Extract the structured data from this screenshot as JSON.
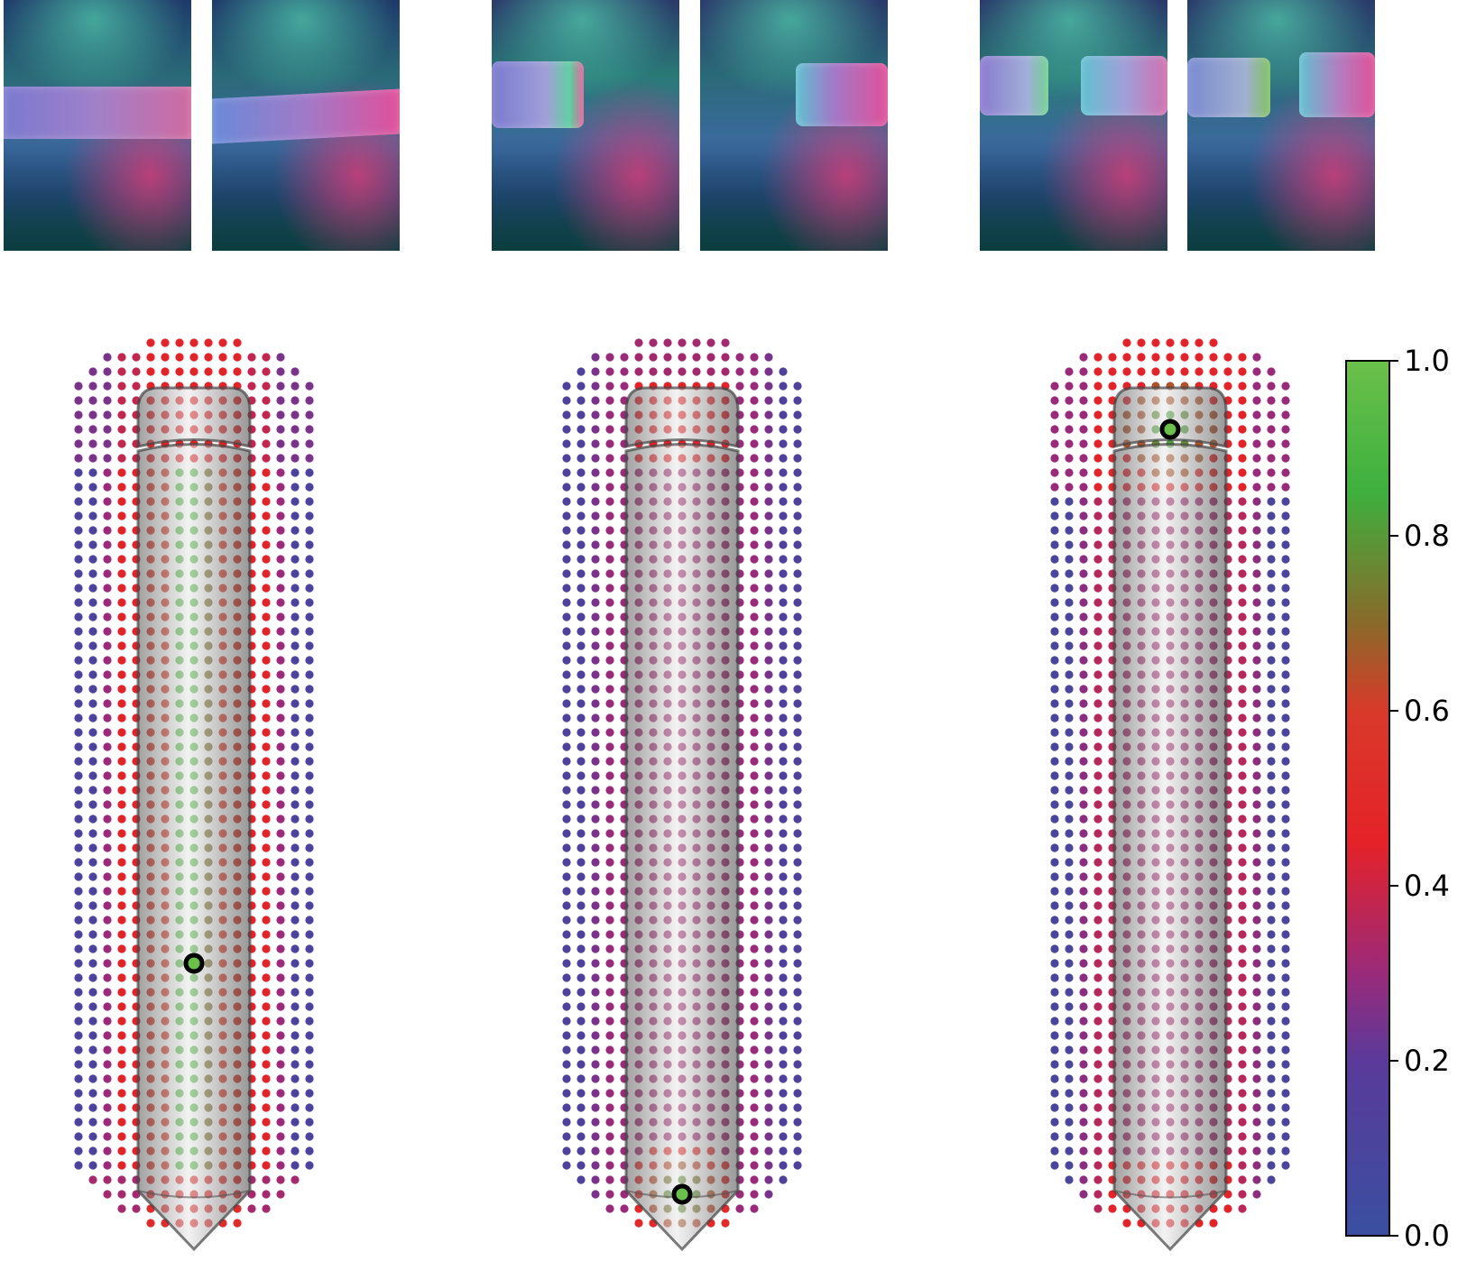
{
  "thumbnails": [
    {
      "id": "pair-1-left",
      "contact": "band"
    },
    {
      "id": "pair-1-right",
      "contact": "band-tilted"
    },
    {
      "id": "pair-2-left",
      "contact": "left-block"
    },
    {
      "id": "pair-2-right",
      "contact": "right-block"
    },
    {
      "id": "pair-3-left",
      "contact": "two-blocks"
    },
    {
      "id": "pair-3-right",
      "contact": "two-blocks"
    }
  ],
  "probability_maps": [
    {
      "id": "map-1",
      "pattern": "center-line",
      "marker_row_fraction": 0.7
    },
    {
      "id": "map-2",
      "pattern": "tip",
      "marker_row_fraction": 0.97
    },
    {
      "id": "map-3",
      "pattern": "cap",
      "marker_row_fraction": 0.1
    }
  ],
  "colorbar": {
    "ticks": [
      "1.0",
      "0.8",
      "0.6",
      "0.4",
      "0.2",
      "0.0"
    ],
    "stops": [
      {
        "value": 0.0,
        "color": "#3a4fa0"
      },
      {
        "value": 0.2,
        "color": "#5a3a9a"
      },
      {
        "value": 0.3,
        "color": "#9a2a7a"
      },
      {
        "value": 0.45,
        "color": "#e52228"
      },
      {
        "value": 0.6,
        "color": "#d83a2a"
      },
      {
        "value": 0.7,
        "color": "#8a6a2a"
      },
      {
        "value": 0.85,
        "color": "#3eb03e"
      },
      {
        "value": 1.0,
        "color": "#6ac04a"
      }
    ]
  }
}
